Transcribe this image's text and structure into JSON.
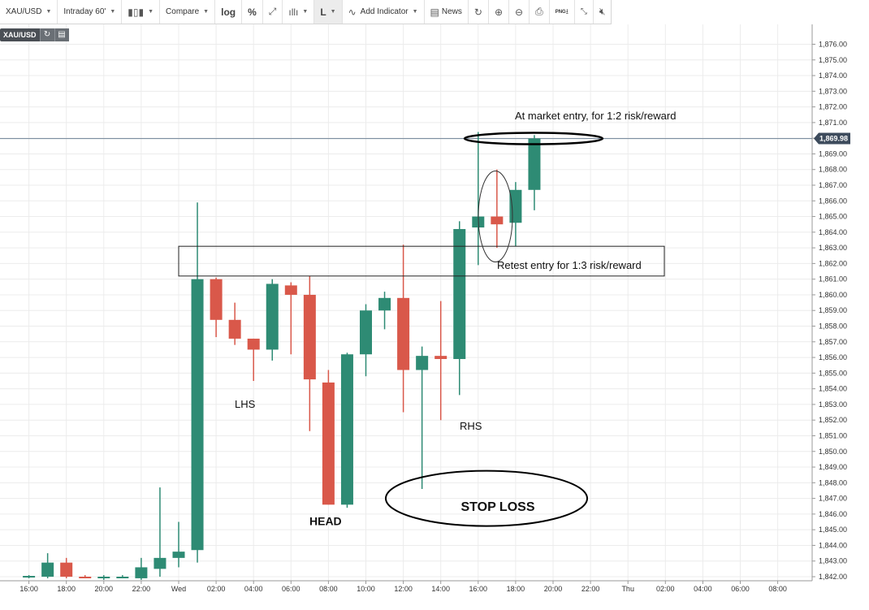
{
  "toolbar": {
    "symbol": "XAU/USD",
    "interval": "Intraday 60'",
    "compare": "Compare",
    "log": "log",
    "percent": "%",
    "line_mode": "L",
    "add_indicator": "Add Indicator",
    "news": "News",
    "png": "PNG"
  },
  "legend_symbol": "XAU/USD",
  "colors": {
    "up": "#2e8b74",
    "down": "#d9584a",
    "grid": "#ececec",
    "price_tag": "#3d4b5c",
    "price_line": "#7d8ea0"
  },
  "chart_data": {
    "type": "candlestick",
    "symbol": "XAU/USD",
    "interval": "60 min",
    "ylim": [
      1841.9,
      1876.8
    ],
    "y_ticks": [
      "1,842.00",
      "1,843.00",
      "1,844.00",
      "1,845.00",
      "1,846.00",
      "1,847.00",
      "1,848.00",
      "1,849.00",
      "1,850.00",
      "1,851.00",
      "1,852.00",
      "1,853.00",
      "1,854.00",
      "1,855.00",
      "1,856.00",
      "1,857.00",
      "1,858.00",
      "1,859.00",
      "1,860.00",
      "1,861.00",
      "1,862.00",
      "1,863.00",
      "1,864.00",
      "1,865.00",
      "1,866.00",
      "1,867.00",
      "1,868.00",
      "1,869.00",
      "1,870.00",
      "1,871.00",
      "1,872.00",
      "1,873.00",
      "1,874.00",
      "1,875.00",
      "1,876.00"
    ],
    "y_tick_values": [
      1842,
      1843,
      1844,
      1845,
      1846,
      1847,
      1848,
      1849,
      1850,
      1851,
      1852,
      1853,
      1854,
      1855,
      1856,
      1857,
      1858,
      1859,
      1860,
      1861,
      1862,
      1863,
      1864,
      1865,
      1866,
      1867,
      1868,
      1869,
      1870,
      1871,
      1872,
      1873,
      1874,
      1875,
      1876
    ],
    "x_ticks": [
      "16:00",
      "18:00",
      "20:00",
      "22:00",
      "Wed",
      "02:00",
      "04:00",
      "06:00",
      "08:00",
      "10:00",
      "12:00",
      "14:00",
      "16:00",
      "18:00",
      "20:00",
      "22:00",
      "Thu",
      "02:00",
      "04:00",
      "06:00",
      "08:00"
    ],
    "x_tick_hours": [
      -8,
      -6,
      -4,
      -2,
      0,
      2,
      4,
      6,
      8,
      10,
      12,
      14,
      16,
      18,
      20,
      22,
      24,
      26,
      28,
      30,
      32
    ],
    "candles": [
      {
        "t": -8,
        "o": 1842.0,
        "h": 1842.1,
        "l": 1841.9,
        "c": 1842.05
      },
      {
        "t": -7,
        "o": 1842.0,
        "h": 1843.5,
        "l": 1841.9,
        "c": 1842.9
      },
      {
        "t": -6,
        "o": 1842.9,
        "h": 1843.2,
        "l": 1841.9,
        "c": 1842.0
      },
      {
        "t": -5,
        "o": 1842.0,
        "h": 1842.1,
        "l": 1841.9,
        "c": 1841.95
      },
      {
        "t": -4,
        "o": 1841.9,
        "h": 1842.1,
        "l": 1841.8,
        "c": 1842.0
      },
      {
        "t": -3,
        "o": 1842.0,
        "h": 1842.1,
        "l": 1841.9,
        "c": 1842.0
      },
      {
        "t": -2,
        "o": 1841.9,
        "h": 1843.2,
        "l": 1841.8,
        "c": 1842.6
      },
      {
        "t": -1,
        "o": 1842.5,
        "h": 1847.7,
        "l": 1842.0,
        "c": 1843.2
      },
      {
        "t": 0,
        "o": 1843.2,
        "h": 1845.5,
        "l": 1842.6,
        "c": 1843.6
      },
      {
        "t": 1,
        "o": 1843.7,
        "h": 1865.9,
        "l": 1842.9,
        "c": 1861.0
      },
      {
        "t": 2,
        "o": 1861.0,
        "h": 1861.1,
        "l": 1857.3,
        "c": 1858.4
      },
      {
        "t": 3,
        "o": 1858.4,
        "h": 1859.5,
        "l": 1856.8,
        "c": 1857.2
      },
      {
        "t": 4,
        "o": 1857.2,
        "h": 1857.2,
        "l": 1854.5,
        "c": 1856.5
      },
      {
        "t": 5,
        "o": 1856.5,
        "h": 1861.0,
        "l": 1855.8,
        "c": 1860.7
      },
      {
        "t": 6,
        "o": 1860.6,
        "h": 1860.8,
        "l": 1856.2,
        "c": 1860.0
      },
      {
        "t": 7,
        "o": 1860.0,
        "h": 1861.2,
        "l": 1851.3,
        "c": 1854.6
      },
      {
        "t": 8,
        "o": 1854.4,
        "h": 1855.2,
        "l": 1846.6,
        "c": 1846.6
      },
      {
        "t": 9,
        "o": 1846.6,
        "h": 1856.3,
        "l": 1846.4,
        "c": 1856.2
      },
      {
        "t": 10,
        "o": 1856.2,
        "h": 1859.4,
        "l": 1854.8,
        "c": 1859.0
      },
      {
        "t": 11,
        "o": 1859.0,
        "h": 1860.2,
        "l": 1857.8,
        "c": 1859.8
      },
      {
        "t": 12,
        "o": 1859.8,
        "h": 1863.2,
        "l": 1852.5,
        "c": 1855.2
      },
      {
        "t": 13,
        "o": 1855.2,
        "h": 1856.7,
        "l": 1847.6,
        "c": 1856.1
      },
      {
        "t": 14,
        "o": 1856.1,
        "h": 1859.6,
        "l": 1852.0,
        "c": 1855.9
      },
      {
        "t": 15,
        "o": 1855.9,
        "h": 1864.7,
        "l": 1853.6,
        "c": 1864.2
      },
      {
        "t": 16,
        "o": 1864.3,
        "h": 1870.4,
        "l": 1861.9,
        "c": 1865.0
      },
      {
        "t": 17,
        "o": 1865.0,
        "h": 1868.0,
        "l": 1863.0,
        "c": 1864.5
      },
      {
        "t": 18,
        "o": 1864.6,
        "h": 1867.2,
        "l": 1863.1,
        "c": 1866.7
      },
      {
        "t": 19,
        "o": 1866.7,
        "h": 1870.2,
        "l": 1865.4,
        "c": 1869.98
      }
    ],
    "last_price": 1869.98,
    "last_price_label": "1,869.98",
    "annotations": {
      "entry_market": "At market entry, for 1:2 risk/reward",
      "entry_retest": "Retest  entry for  1:3 risk/reward",
      "lhs": "LHS",
      "head": "HEAD",
      "rhs": "RHS",
      "stop_loss": "STOP LOSS"
    },
    "zone": {
      "low": 1861.2,
      "high": 1863.1
    }
  }
}
